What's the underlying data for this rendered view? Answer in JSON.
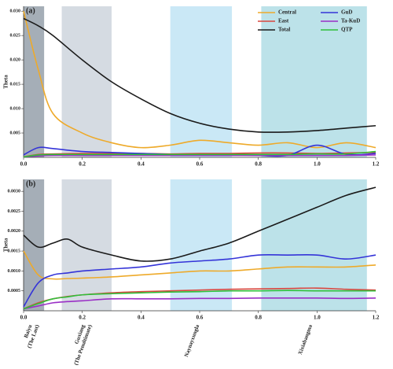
{
  "chart_data": [
    {
      "type": "line",
      "panel_label": "(a)",
      "ylabel": "Theta",
      "xlim": [
        0,
        1.2
      ],
      "ylim": [
        0,
        0.031
      ],
      "xticks": [
        {
          "value": 0,
          "label": "0.0"
        },
        0.2,
        0.4,
        0.6,
        0.8,
        {
          "value": 1,
          "label": "1.0"
        },
        1.2
      ],
      "yticks": [
        0.005,
        {
          "value": 0.01,
          "label": "0.010"
        },
        0.015,
        {
          "value": 0.02,
          "label": "0.020"
        },
        0.025,
        {
          "value": 0.03,
          "label": "0.030"
        }
      ],
      "legend": "upper right",
      "bands": [
        {
          "range": [
            0,
            0.07
          ],
          "color": "#7f8b98"
        },
        {
          "range": [
            0.13,
            0.3
          ],
          "color": "#c3ccd6"
        },
        {
          "range": [
            0.5,
            0.71
          ],
          "color": "#b4def2"
        },
        {
          "range": [
            0.81,
            1.17
          ],
          "color": "#9fd6df"
        }
      ],
      "x": [
        0,
        0.05,
        0.1,
        0.2,
        0.3,
        0.4,
        0.5,
        0.6,
        0.7,
        0.8,
        0.9,
        1.0,
        1.1,
        1.2
      ],
      "series": [
        {
          "name": "Central",
          "color": "#eeaa2a",
          "values": [
            0.03,
            0.018,
            0.009,
            0.005,
            0.003,
            0.002,
            0.0025,
            0.0035,
            0.003,
            0.0025,
            0.003,
            0.002,
            0.003,
            0.002
          ]
        },
        {
          "name": "East",
          "color": "#d9473f",
          "values": [
            0.0001,
            0.0006,
            0.0007,
            0.0008,
            0.0008,
            0.0008,
            0.0007,
            0.0008,
            0.0008,
            0.0009,
            0.0009,
            0.0008,
            0.0009,
            0.001
          ]
        },
        {
          "name": "Total",
          "color": "#1a1a1a",
          "values": [
            0.0285,
            0.027,
            0.025,
            0.02,
            0.0155,
            0.012,
            0.009,
            0.007,
            0.0058,
            0.0052,
            0.0052,
            0.0055,
            0.006,
            0.0065
          ]
        },
        {
          "name": "GuD",
          "color": "#3434d8",
          "values": [
            0.0005,
            0.002,
            0.0018,
            0.0012,
            0.001,
            0.0008,
            0.0006,
            0.0005,
            0.0005,
            0.0004,
            0.0004,
            0.0025,
            0.0006,
            0.0008
          ]
        },
        {
          "name": "Ta-KuD",
          "color": "#9a2fc6",
          "values": [
            0.0001,
            0.0003,
            0.0004,
            0.0004,
            0.0004,
            0.0004,
            0.0004,
            0.0004,
            0.0004,
            0.0004,
            0.0004,
            0.0004,
            0.0004,
            0.0005
          ]
        },
        {
          "name": "QTP",
          "color": "#2fc03a",
          "values": [
            0.0001,
            0.0005,
            0.0006,
            0.0006,
            0.0006,
            0.0006,
            0.0006,
            0.0006,
            0.0006,
            0.0006,
            0.0006,
            0.0007,
            0.0007,
            0.0012
          ]
        }
      ]
    },
    {
      "type": "line",
      "panel_label": "(b)",
      "ylabel": "Theta",
      "xlim": [
        0,
        1.2
      ],
      "ylim": [
        0,
        0.0033
      ],
      "xticks": [
        {
          "value": 0,
          "label": "0.0"
        },
        0.2,
        0.4,
        0.6,
        0.8,
        {
          "value": 1,
          "label": "1.0"
        },
        1.2
      ],
      "yticks": [
        0.0005,
        {
          "value": 0.001,
          "label": "0.0010"
        },
        0.0015,
        {
          "value": 0.002,
          "label": "0.0020"
        },
        0.0025,
        {
          "value": 0.003,
          "label": "0.0030"
        }
      ],
      "bands": [
        {
          "range": [
            0,
            0.07
          ],
          "color": "#7f8b98",
          "label": [
            "Baiyu",
            "(The Last)"
          ]
        },
        {
          "range": [
            0.13,
            0.3
          ],
          "color": "#c3ccd6",
          "label": [
            "Guxiang",
            "(The Penultimate)"
          ]
        },
        {
          "range": [
            0.5,
            0.71
          ],
          "color": "#b4def2",
          "label": [
            "Naynayxungla"
          ]
        },
        {
          "range": [
            0.81,
            1.17
          ],
          "color": "#9fd6df",
          "label": [
            "Xixiabangma"
          ]
        }
      ],
      "x": [
        0,
        0.05,
        0.1,
        0.15,
        0.2,
        0.3,
        0.4,
        0.5,
        0.6,
        0.7,
        0.8,
        0.9,
        1.0,
        1.1,
        1.2
      ],
      "series": [
        {
          "name": "Central",
          "color": "#eeaa2a",
          "values": [
            0.0015,
            0.0009,
            0.0008,
            0.00081,
            0.00082,
            0.00085,
            0.0009,
            0.00095,
            0.001,
            0.001,
            0.00105,
            0.0011,
            0.0011,
            0.0011,
            0.00115
          ]
        },
        {
          "name": "East",
          "color": "#d9473f",
          "values": [
            5e-05,
            0.0002,
            0.0003,
            0.00036,
            0.0004,
            0.00045,
            0.00048,
            0.0005,
            0.00052,
            0.00054,
            0.00055,
            0.00056,
            0.00057,
            0.00054,
            0.00052
          ]
        },
        {
          "name": "Total",
          "color": "#1a1a1a",
          "values": [
            0.0019,
            0.0016,
            0.0017,
            0.0018,
            0.0016,
            0.0014,
            0.00125,
            0.0013,
            0.0015,
            0.0017,
            0.002,
            0.0023,
            0.0026,
            0.0029,
            0.0031
          ]
        },
        {
          "name": "GuD",
          "color": "#3434d8",
          "values": [
            0.0001,
            0.0007,
            0.0009,
            0.00095,
            0.001,
            0.00105,
            0.0011,
            0.0012,
            0.00125,
            0.0013,
            0.0014,
            0.0014,
            0.0014,
            0.0013,
            0.0014
          ]
        },
        {
          "name": "Ta-KuD",
          "color": "#9a2fc6",
          "values": [
            5e-05,
            0.00012,
            0.0002,
            0.00023,
            0.00025,
            0.0003,
            0.0003,
            0.0003,
            0.00031,
            0.00031,
            0.00032,
            0.00032,
            0.00032,
            0.00031,
            0.00032
          ]
        },
        {
          "name": "QTP",
          "color": "#2fc03a",
          "values": [
            5e-05,
            0.00018,
            0.0003,
            0.00035,
            0.0004,
            0.00043,
            0.00045,
            0.00047,
            0.00048,
            0.0005,
            0.0005,
            0.00051,
            0.0005,
            0.0005,
            0.0005
          ]
        }
      ]
    }
  ]
}
